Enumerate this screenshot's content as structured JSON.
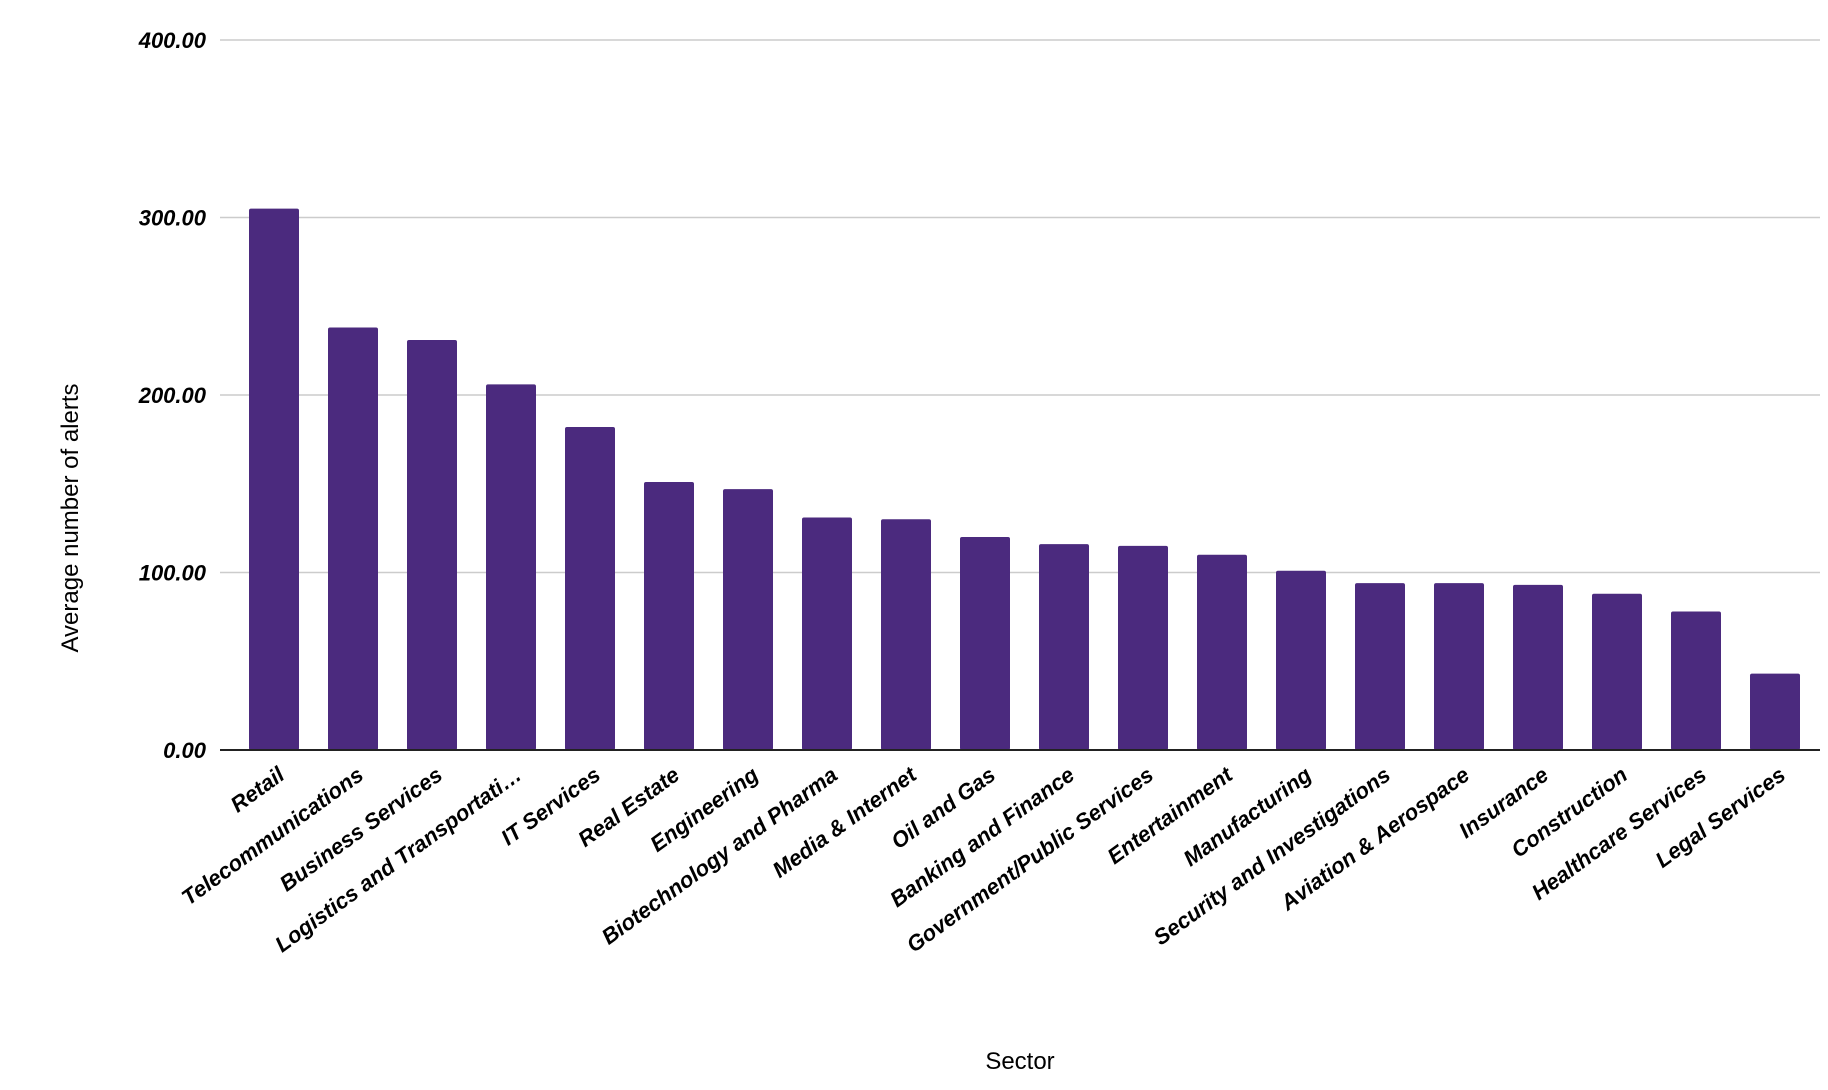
{
  "chart_data": {
    "type": "bar",
    "xlabel": "Sector",
    "ylabel": "Average number of alerts",
    "ylim": [
      0,
      400
    ],
    "yticks": [
      "0.00",
      "100.00",
      "200.00",
      "300.00",
      "400.00"
    ],
    "grid": true,
    "bar_color": "#4b2a7e",
    "categories": [
      "Retail",
      "Telecommunications",
      "Business Services",
      "Logistics and Transportati…",
      "IT Services",
      "Real Estate",
      "Engineering",
      "Biotechnology and Pharma",
      "Media & Internet",
      "Oil and Gas",
      "Banking and Finance",
      "Government/Public Services",
      "Entertainment",
      "Manufacturing",
      "Security and Investigations",
      "Aviation & Aerospace",
      "Insurance",
      "Construction",
      "Healthcare Services",
      "Legal Services"
    ],
    "values": [
      305,
      238,
      231,
      206,
      182,
      151,
      147,
      131,
      130,
      120,
      116,
      115,
      110,
      101,
      94,
      94,
      93,
      88,
      78,
      43
    ]
  }
}
